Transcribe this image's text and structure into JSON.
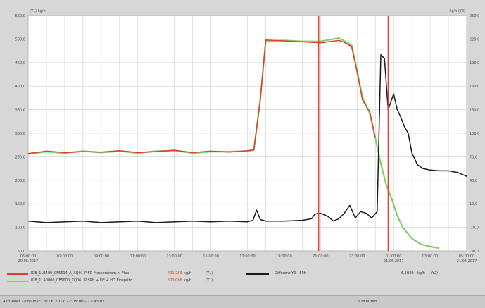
{
  "colors": {
    "red": "#e23b2b",
    "green": "#7fd16a",
    "black": "#1a1a1a",
    "cursor": "#e6402a",
    "grid": "#cfcfcf",
    "plot_bg": "#ffffff"
  },
  "chart_data": {
    "type": "line",
    "y1_unit": "(Y1) kg/h",
    "y2_unit": "kg/h (Y2)",
    "x_ticks": [
      {
        "l1": "05:00:00",
        "l2": "20.06.2017"
      },
      {
        "l1": "07:00:00",
        "l2": ""
      },
      {
        "l1": "09:00:00",
        "l2": ""
      },
      {
        "l1": "11:00:00",
        "l2": ""
      },
      {
        "l1": "13:00:00",
        "l2": ""
      },
      {
        "l1": "15:00:00",
        "l2": ""
      },
      {
        "l1": "17:00:00",
        "l2": ""
      },
      {
        "l1": "19:00:00",
        "l2": ""
      },
      {
        "l1": "21:00:00",
        "l2": ""
      },
      {
        "l1": "23:00:00",
        "l2": ""
      },
      {
        "l1": "01:00:00",
        "l2": "21.06.2017"
      },
      {
        "l1": "03:00:00",
        "l2": ""
      },
      {
        "l1": "05:00:00",
        "l2": "21.06.2017"
      }
    ],
    "x_range": [
      0,
      24
    ],
    "y1_ticks": [
      "50,0",
      "100,0",
      "150,0",
      "200,0",
      "250,0",
      "300,0",
      "350,0",
      "400,0",
      "450,0",
      "500,0",
      "550,0"
    ],
    "y1_range": [
      50,
      550
    ],
    "y2_ticks": [
      "-30,0",
      "-10,0",
      "10,0",
      "40,0",
      "70,0",
      "100,0",
      "130,0",
      "160,0",
      "190,0",
      "220,0",
      "250,0"
    ],
    "y2_range": [
      -50,
      250
    ],
    "cursors_x": [
      15.9,
      19.7
    ],
    "grid": true,
    "series": [
      {
        "name": "IGB_1LB400_CF5514_A_XQ01",
        "axis": "Y1",
        "color": "#e23b2b",
        "x": [
          0,
          1,
          2,
          3,
          4,
          5,
          6,
          7,
          8,
          9,
          10,
          11,
          12,
          12.35,
          12.7,
          13,
          14,
          15,
          16,
          17,
          17.3,
          17.7,
          18,
          18.3,
          18.7,
          19
        ],
        "y": [
          257,
          262,
          259,
          261,
          260,
          263,
          259,
          261,
          264,
          259,
          262,
          260,
          263,
          265,
          370,
          498,
          496,
          494,
          492,
          497,
          493,
          484,
          430,
          370,
          345,
          290
        ]
      },
      {
        "name": "IGB_1LA0000_CF5000_XQ06",
        "axis": "Y1",
        "color": "#7fd16a",
        "x": [
          0,
          1,
          2,
          3,
          4,
          5,
          6,
          7,
          8,
          9,
          10,
          11,
          12,
          12.35,
          12.7,
          13,
          14,
          15,
          16,
          17,
          17.3,
          17.7,
          18,
          18.3,
          18.7,
          19,
          19.3,
          19.6,
          19.9,
          20.2,
          20.5,
          21,
          21.5,
          22,
          22.5
        ],
        "y": [
          256,
          261,
          258,
          262,
          259,
          262,
          258,
          262,
          263,
          258,
          261,
          261,
          262,
          264,
          372,
          496,
          497,
          495,
          495,
          502,
          496,
          487,
          433,
          376,
          341,
          290,
          235,
          190,
          160,
          125,
          100,
          76,
          64,
          59,
          56
        ]
      },
      {
        "name": "Differenz Y0 - SPH",
        "axis": "Y2",
        "color": "#1a1a1a",
        "x": [
          0,
          1,
          2,
          3,
          4,
          5,
          6,
          7,
          8,
          9,
          10,
          11,
          12,
          12.3,
          12.5,
          12.7,
          13,
          14,
          15,
          15.5,
          15.7,
          16,
          16.4,
          16.7,
          17,
          17.3,
          17.6,
          17.9,
          18.2,
          18.5,
          18.8,
          19.1,
          19.3,
          19.5,
          19.7,
          20,
          20.2,
          20.4,
          20.6,
          20.8,
          21,
          21.3,
          21.6,
          22,
          22.5,
          23,
          23.5,
          24
        ],
        "y": [
          -12,
          -14,
          -13,
          -12,
          -14,
          -13,
          -12,
          -14,
          -13,
          -12,
          -13,
          -12,
          -13,
          -11,
          2,
          -10,
          -12,
          -12,
          -11,
          -9,
          -3,
          -2,
          -6,
          -12,
          -9,
          -2,
          8,
          -8,
          0,
          -2,
          -8,
          0,
          200,
          195,
          130,
          150,
          130,
          120,
          108,
          100,
          75,
          60,
          55,
          53,
          52,
          52,
          50,
          45
        ]
      }
    ]
  },
  "legend": [
    {
      "name": "IGB_1LB400_CF5514_A_XQ01",
      "desc": "P FD Messerstrom.hi-Flex",
      "value": "491,253",
      "unit": "kg/h",
      "axis": "(Y1)",
      "color": "#e23b2b"
    },
    {
      "name": "IGB_1LA0000_CF5000_XQ06",
      "desc": "P SPH + DE + HD Einspritz",
      "value": "500,066",
      "unit": "kg/h",
      "axis": "(Y1)",
      "color": "#7fd16a"
    },
    {
      "name": "Differenz Y0 - SPH",
      "desc": "",
      "value": "6,5039",
      "unit": "kg/h",
      "axis": "(Y2)",
      "color": "#1a1a1a"
    }
  ],
  "status": {
    "left": "Aktueller Zeitpunkt: 20.06.2017 22:05:00 - 22:43:02",
    "right": "5 Minuten"
  }
}
